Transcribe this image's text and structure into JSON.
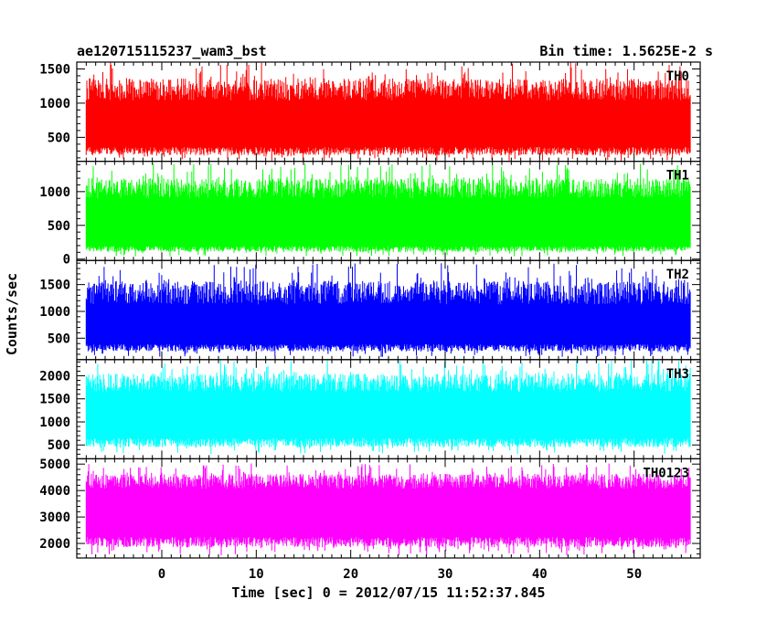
{
  "chart_data": {
    "type": "line",
    "title_left": "ae120715115237_wam3_bst",
    "title_right": "Bin time: 1.5625E-2 s",
    "xlabel": "Time [sec] 0 = 2012/07/15 11:52:37.845",
    "ylabel": "Counts/sec",
    "xlim": [
      -9,
      57
    ],
    "data_x_range": [
      -8,
      56
    ],
    "x_ticks": [
      0,
      10,
      20,
      30,
      40,
      50
    ],
    "x_tick_labels": [
      "0",
      "10",
      "20",
      "30",
      "40",
      "50"
    ],
    "grid": false,
    "panels": [
      {
        "name": "TH0",
        "color": "#ff0000",
        "ylim": [
          150,
          1600
        ],
        "y_ticks": [
          500,
          1000,
          1500
        ],
        "y_tick_labels": [
          "500",
          "1000",
          "1500"
        ],
        "typical_low": 300,
        "typical_high": 1200,
        "min": 150,
        "max": 1600
      },
      {
        "name": "TH1",
        "color": "#00ff00",
        "ylim": [
          -20,
          1450
        ],
        "y_ticks": [
          0,
          500,
          1000
        ],
        "y_tick_labels": [
          "0",
          "500",
          "1000"
        ],
        "typical_low": 150,
        "typical_high": 1050,
        "min": 40,
        "max": 1420
      },
      {
        "name": "TH2",
        "color": "#0000ff",
        "ylim": [
          100,
          1950
        ],
        "y_ticks": [
          500,
          1000,
          1500
        ],
        "y_tick_labels": [
          "500",
          "1000",
          "1500"
        ],
        "typical_low": 320,
        "typical_high": 1350,
        "min": 150,
        "max": 1900
      },
      {
        "name": "TH3",
        "color": "#00ffff",
        "ylim": [
          200,
          2350
        ],
        "y_ticks": [
          500,
          1000,
          1500,
          2000
        ],
        "y_tick_labels": [
          "500",
          "1000",
          "1500",
          "2000"
        ],
        "typical_low": 550,
        "typical_high": 1850,
        "min": 300,
        "max": 2350
      },
      {
        "name": "TH0123",
        "color": "#ff00ff",
        "ylim": [
          1450,
          5200
        ],
        "y_ticks": [
          2000,
          3000,
          4000,
          5000
        ],
        "y_tick_labels": [
          "2000",
          "3000",
          "4000",
          "5000"
        ],
        "typical_low": 2050,
        "typical_high": 4350,
        "min": 1550,
        "max": 5050
      }
    ]
  }
}
